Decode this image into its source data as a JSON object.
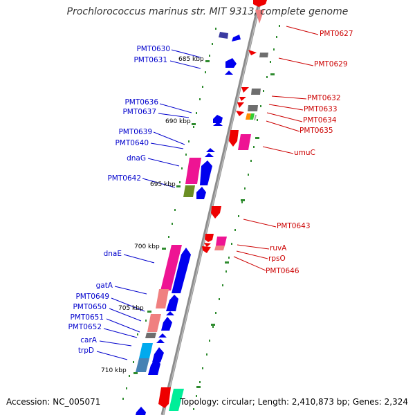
{
  "title": "Prochlorococcus marinus str. MIT 9313, complete genome",
  "accession_text": "Accession: NC_005071",
  "summary_text": "Topology: circular; Length: 2,410,873 bp; Genes: 2,324",
  "colors": {
    "axis": "#8c8c8c",
    "forward_label": "#cc0000",
    "reverse_label": "#0000cc",
    "tick": "#2e8b2e"
  },
  "kbp_ticks": [
    "685 kbp",
    "690 kbp",
    "695 kbp",
    "700 kbp",
    "705 kbp",
    "710 kbp"
  ],
  "forward_labels": [
    "PMT0627",
    "PMT0629",
    "PMT0632",
    "PMT0633",
    "PMT0634",
    "PMT0635",
    "umuC",
    "PMT0643",
    "ruvA",
    "rpsO",
    "PMT0646"
  ],
  "reverse_labels": [
    "PMT0630",
    "PMT0631",
    "PMT0636",
    "PMT0637",
    "PMT0639",
    "PMT0640",
    "dnaG",
    "PMT0642",
    "dnaE",
    "gatA",
    "PMT0649",
    "PMT0650",
    "PMT0651",
    "PMT0652",
    "carA",
    "trpD"
  ]
}
